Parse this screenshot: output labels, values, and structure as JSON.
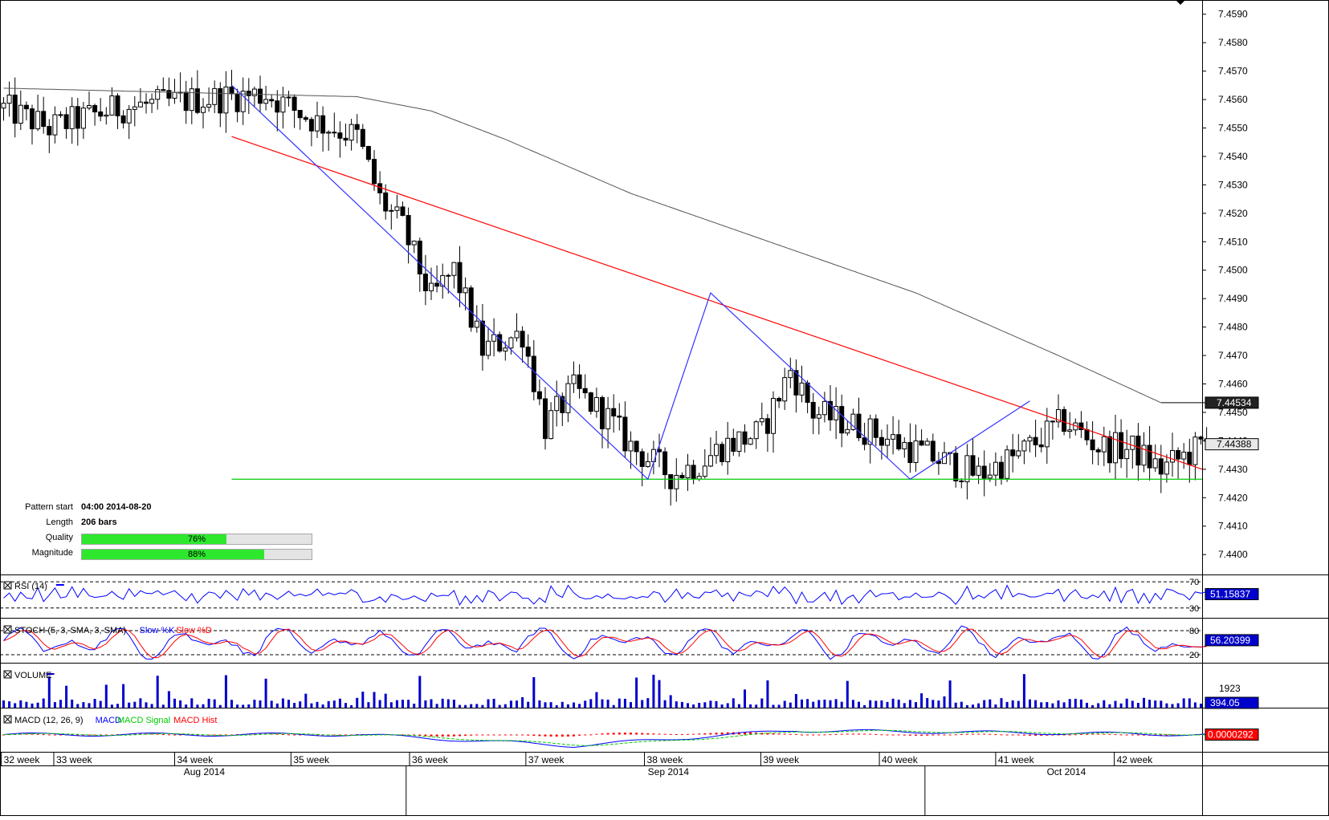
{
  "pattern_info": {
    "start_label": "Pattern start",
    "start_value": "04:00 2014-08-20",
    "length_label": "Length",
    "length_value": "206 bars",
    "quality_label": "Quality",
    "quality_text": "76%",
    "quality_pct": 76,
    "magnitude_label": "Magnitude",
    "magnitude_text": "88%",
    "magnitude_pct": 88
  },
  "colors": {
    "candle": "#000000",
    "ma_line": "#555555",
    "resistance": "#ff0000",
    "support": "#00cc00",
    "zigzag": "#3333ff",
    "rsi": "#0000ff",
    "stoch_k": "#0000ff",
    "stoch_d": "#ff0000",
    "volume": "#0000cc",
    "macd": "#0000ff",
    "macd_signal": "#00cc00",
    "macd_hist": "#ff0000",
    "label_box": "#0000cc"
  },
  "chart_data": [
    {
      "type": "candlestick",
      "panel": "price",
      "ylim": [
        7.4393,
        7.4595
      ],
      "y_ticks": [
        "7.4590",
        "7.4580",
        "7.4570",
        "7.4560",
        "7.4550",
        "7.4540",
        "7.4530",
        "7.4520",
        "7.4510",
        "7.4500",
        "7.4490",
        "7.4480",
        "7.4470",
        "7.4460",
        "7.4450",
        "7.4440",
        "7.4430",
        "7.4420",
        "7.4410",
        "7.4400"
      ],
      "anchors": [
        {
          "bar": 0,
          "close": 7.4557
        },
        {
          "bar": 8,
          "close": 7.455
        },
        {
          "bar": 20,
          "close": 7.4557
        },
        {
          "bar": 34,
          "close": 7.456
        },
        {
          "bar": 46,
          "close": 7.4562
        },
        {
          "bar": 55,
          "close": 7.4552
        },
        {
          "bar": 62,
          "close": 7.4547
        },
        {
          "bar": 66,
          "close": 7.4525
        },
        {
          "bar": 70,
          "close": 7.4515
        },
        {
          "bar": 75,
          "close": 7.449
        },
        {
          "bar": 79,
          "close": 7.45
        },
        {
          "bar": 84,
          "close": 7.4472
        },
        {
          "bar": 91,
          "close": 7.4478
        },
        {
          "bar": 95,
          "close": 7.4445
        },
        {
          "bar": 100,
          "close": 7.4458
        },
        {
          "bar": 106,
          "close": 7.4448
        },
        {
          "bar": 110,
          "close": 7.4438
        },
        {
          "bar": 117,
          "close": 7.4428
        },
        {
          "bar": 122,
          "close": 7.4432
        },
        {
          "bar": 126,
          "close": 7.4438
        },
        {
          "bar": 133,
          "close": 7.4443
        },
        {
          "bar": 138,
          "close": 7.4465
        },
        {
          "bar": 142,
          "close": 7.445
        },
        {
          "bar": 150,
          "close": 7.4445
        },
        {
          "bar": 162,
          "close": 7.4435
        },
        {
          "bar": 171,
          "close": 7.4428
        },
        {
          "bar": 178,
          "close": 7.4435
        },
        {
          "bar": 186,
          "close": 7.4447
        },
        {
          "bar": 192,
          "close": 7.4438
        },
        {
          "bar": 198,
          "close": 7.4437
        },
        {
          "bar": 203,
          "close": 7.443
        },
        {
          "bar": 211,
          "close": 7.4439
        }
      ],
      "moving_average": [
        {
          "bar": 0,
          "value": 7.4564
        },
        {
          "bar": 62,
          "value": 7.4561
        },
        {
          "bar": 75,
          "value": 7.4556
        },
        {
          "bar": 88,
          "value": 7.4546
        },
        {
          "bar": 110,
          "value": 7.4527
        },
        {
          "bar": 130,
          "value": 7.4513
        },
        {
          "bar": 160,
          "value": 7.4492
        },
        {
          "bar": 185,
          "value": 7.447
        },
        {
          "bar": 198,
          "value": 7.4458
        },
        {
          "bar": 203,
          "value": 7.44534
        }
      ],
      "resistance_line": {
        "from": {
          "bar": 40,
          "value": 7.4547
        },
        "to": {
          "bar": 220,
          "value": 7.443
        }
      },
      "support_line": {
        "from": {
          "bar": 40,
          "value": 7.44265
        },
        "to": {
          "bar": 220,
          "value": 7.44265
        }
      },
      "zigzag": [
        {
          "bar": 40,
          "value": 7.4565
        },
        {
          "bar": 113,
          "value": 7.44265
        },
        {
          "bar": 124,
          "value": 7.4492
        },
        {
          "bar": 159,
          "value": 7.44265
        },
        {
          "bar": 180,
          "value": 7.4454
        }
      ],
      "last_values": [
        {
          "label": "7.44534",
          "value": 7.44534,
          "style": "dark"
        },
        {
          "label": "7.44388",
          "value": 7.44388,
          "style": "light"
        }
      ]
    },
    {
      "type": "line",
      "panel": "rsi",
      "title": "RSI (14)",
      "ylim": [
        15,
        75
      ],
      "levels": [
        70,
        30
      ],
      "level_labels": [
        "70",
        "30"
      ],
      "last_value": "51.15837"
    },
    {
      "type": "line",
      "panel": "stoch",
      "title": "STOCH (5, 3, SMA, 3, SMA)",
      "legend_k": "Slow %K",
      "legend_d": "Slow %D",
      "ylim": [
        0,
        100
      ],
      "levels": [
        80,
        20
      ],
      "level_labels": [
        "80",
        "20"
      ],
      "last_value": "56.20399"
    },
    {
      "type": "bar",
      "panel": "volume",
      "title": "VOLUME",
      "y_tick": "1923",
      "last_value": "394.05"
    },
    {
      "type": "line",
      "panel": "macd",
      "title": "MACD (12, 26, 9)",
      "legend_macd": "MACD",
      "legend_signal": "MACD Signal",
      "legend_hist": "MACD Hist",
      "last_value": "0.0000292"
    }
  ],
  "x_axis": {
    "week_labels": [
      {
        "bar": -0.4,
        "label": "32 week"
      },
      {
        "bar": 8.8,
        "label": "33 week"
      },
      {
        "bar": 30,
        "label": "34 week"
      },
      {
        "bar": 50.4,
        "label": "35 week"
      },
      {
        "bar": 71.2,
        "label": "36 week"
      },
      {
        "bar": 91.6,
        "label": "37 week"
      },
      {
        "bar": 112.4,
        "label": "38 week"
      },
      {
        "bar": 132.8,
        "label": "39 week"
      },
      {
        "bar": 153.6,
        "label": "40 week"
      },
      {
        "bar": 174,
        "label": "41 week"
      },
      {
        "bar": 194.8,
        "label": "42 week"
      }
    ],
    "month_labels": [
      {
        "bar": 35.2,
        "label": "Aug 2014"
      },
      {
        "bar": 116.6,
        "label": "Sep 2014"
      },
      {
        "bar": 186.4,
        "label": "Oct 2014"
      }
    ],
    "month_dividers": [
      70.6,
      161.6
    ]
  }
}
